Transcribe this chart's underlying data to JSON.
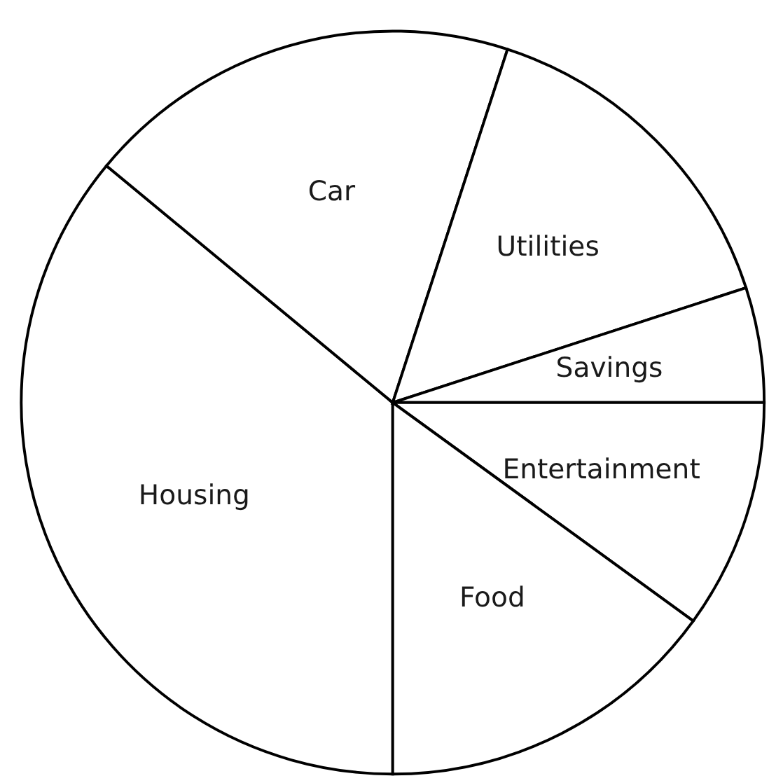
{
  "chart_data": {
    "type": "pie",
    "categories": [
      "Housing",
      "Car",
      "Utilities",
      "Savings",
      "Entertainment",
      "Food"
    ],
    "values": [
      36,
      19,
      15,
      5,
      10,
      15
    ],
    "colors": [
      "#ffffff",
      "#ffffff",
      "#ffffff",
      "#ffffff",
      "#ffffff",
      "#ffffff"
    ]
  }
}
